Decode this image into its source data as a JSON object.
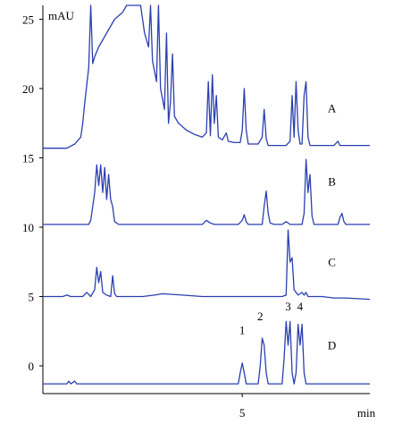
{
  "chart_data": {
    "type": "line",
    "title": "",
    "ylabel": "mAU",
    "xlabel": "min",
    "ylim": [
      -2,
      26
    ],
    "xlim": [
      0,
      8.2
    ],
    "y_ticks": [
      0,
      5,
      10,
      15,
      20,
      25
    ],
    "x_ticks": [
      5
    ],
    "grid": false,
    "series": [
      {
        "name": "A",
        "color": "#2a3fb0",
        "points": [
          [
            0,
            15.7
          ],
          [
            0.6,
            15.7
          ],
          [
            0.8,
            16.0
          ],
          [
            0.95,
            16.5
          ],
          [
            1.0,
            17.5
          ],
          [
            1.05,
            19.0
          ],
          [
            1.15,
            21.5
          ],
          [
            1.2,
            28
          ],
          [
            1.25,
            21.8
          ],
          [
            1.3,
            22.3
          ],
          [
            1.4,
            23.0
          ],
          [
            1.6,
            24.0
          ],
          [
            1.8,
            25.0
          ],
          [
            2.0,
            25.5
          ],
          [
            2.1,
            26.5
          ],
          [
            2.2,
            26.5
          ],
          [
            2.35,
            26.5
          ],
          [
            2.45,
            26.5
          ],
          [
            2.55,
            24.0
          ],
          [
            2.65,
            23.0
          ],
          [
            2.7,
            26.5
          ],
          [
            2.75,
            22.0
          ],
          [
            2.85,
            20.5
          ],
          [
            2.9,
            26.5
          ],
          [
            2.95,
            20.0
          ],
          [
            3.05,
            18.5
          ],
          [
            3.1,
            24.0
          ],
          [
            3.15,
            17.5
          ],
          [
            3.2,
            19.0
          ],
          [
            3.25,
            22.5
          ],
          [
            3.3,
            18.0
          ],
          [
            3.4,
            17.5
          ],
          [
            3.6,
            17.0
          ],
          [
            3.8,
            16.7
          ],
          [
            4.0,
            16.5
          ],
          [
            4.1,
            16.8
          ],
          [
            4.15,
            20.5
          ],
          [
            4.2,
            16.6
          ],
          [
            4.25,
            21.0
          ],
          [
            4.3,
            17.5
          ],
          [
            4.35,
            19.5
          ],
          [
            4.4,
            16.5
          ],
          [
            4.5,
            16.3
          ],
          [
            4.6,
            16.8
          ],
          [
            4.65,
            16.2
          ],
          [
            4.8,
            16.1
          ],
          [
            4.95,
            16.1
          ],
          [
            5.0,
            17.0
          ],
          [
            5.05,
            20.0
          ],
          [
            5.1,
            17.0
          ],
          [
            5.15,
            16.0
          ],
          [
            5.4,
            16.0
          ],
          [
            5.5,
            16.5
          ],
          [
            5.55,
            18.5
          ],
          [
            5.6,
            16.4
          ],
          [
            5.65,
            15.9
          ],
          [
            5.8,
            15.9
          ],
          [
            6.1,
            15.9
          ],
          [
            6.2,
            16.2
          ],
          [
            6.25,
            19.5
          ],
          [
            6.3,
            16.5
          ],
          [
            6.35,
            20.5
          ],
          [
            6.4,
            17.0
          ],
          [
            6.45,
            16.0
          ],
          [
            6.5,
            16.0
          ],
          [
            6.55,
            19.5
          ],
          [
            6.6,
            20.5
          ],
          [
            6.65,
            16.5
          ],
          [
            6.7,
            15.9
          ],
          [
            7.0,
            15.9
          ],
          [
            7.3,
            15.9
          ],
          [
            7.4,
            16.2
          ],
          [
            7.45,
            15.9
          ],
          [
            7.6,
            15.9
          ],
          [
            8.2,
            15.9
          ]
        ]
      },
      {
        "name": "B",
        "color": "#2a3fb0",
        "points": [
          [
            0,
            10.2
          ],
          [
            1.15,
            10.2
          ],
          [
            1.2,
            10.5
          ],
          [
            1.3,
            12.5
          ],
          [
            1.35,
            14.5
          ],
          [
            1.4,
            13.0
          ],
          [
            1.45,
            14.5
          ],
          [
            1.5,
            12.5
          ],
          [
            1.55,
            14.3
          ],
          [
            1.6,
            12.0
          ],
          [
            1.65,
            13.8
          ],
          [
            1.7,
            12.0
          ],
          [
            1.75,
            11.5
          ],
          [
            1.8,
            10.4
          ],
          [
            1.9,
            10.2
          ],
          [
            3.6,
            10.2
          ],
          [
            4.0,
            10.2
          ],
          [
            4.1,
            10.5
          ],
          [
            4.2,
            10.3
          ],
          [
            4.3,
            10.2
          ],
          [
            4.9,
            10.2
          ],
          [
            5.0,
            10.5
          ],
          [
            5.05,
            10.9
          ],
          [
            5.1,
            10.4
          ],
          [
            5.15,
            10.2
          ],
          [
            5.5,
            10.2
          ],
          [
            5.55,
            11.5
          ],
          [
            5.6,
            12.6
          ],
          [
            5.65,
            11.0
          ],
          [
            5.7,
            10.3
          ],
          [
            5.8,
            10.2
          ],
          [
            6.0,
            10.2
          ],
          [
            6.1,
            10.4
          ],
          [
            6.2,
            10.2
          ],
          [
            6.5,
            10.2
          ],
          [
            6.55,
            11.0
          ],
          [
            6.6,
            14.9
          ],
          [
            6.65,
            12.5
          ],
          [
            6.7,
            13.8
          ],
          [
            6.75,
            10.8
          ],
          [
            6.8,
            10.2
          ],
          [
            7.4,
            10.2
          ],
          [
            7.45,
            10.7
          ],
          [
            7.5,
            11.0
          ],
          [
            7.55,
            10.4
          ],
          [
            7.6,
            10.2
          ],
          [
            8.2,
            10.2
          ]
        ]
      },
      {
        "name": "C",
        "color": "#2a3fb0",
        "points": [
          [
            0,
            5.0
          ],
          [
            0.5,
            5.0
          ],
          [
            0.6,
            5.1
          ],
          [
            0.7,
            5.0
          ],
          [
            1.0,
            5.0
          ],
          [
            1.1,
            5.3
          ],
          [
            1.2,
            5.0
          ],
          [
            1.3,
            5.5
          ],
          [
            1.35,
            7.1
          ],
          [
            1.4,
            6.0
          ],
          [
            1.45,
            6.8
          ],
          [
            1.5,
            5.3
          ],
          [
            1.6,
            5.1
          ],
          [
            1.7,
            5.0
          ],
          [
            1.75,
            6.5
          ],
          [
            1.8,
            5.2
          ],
          [
            1.85,
            5.0
          ],
          [
            2.1,
            5.0
          ],
          [
            2.5,
            5.0
          ],
          [
            2.8,
            5.1
          ],
          [
            3.0,
            5.2
          ],
          [
            3.5,
            5.1
          ],
          [
            4.0,
            5.0
          ],
          [
            4.5,
            5.0
          ],
          [
            5.0,
            5.0
          ],
          [
            5.5,
            5.0
          ],
          [
            5.8,
            5.0
          ],
          [
            6.0,
            5.0
          ],
          [
            6.1,
            5.1
          ],
          [
            6.15,
            9.8
          ],
          [
            6.2,
            7.5
          ],
          [
            6.25,
            7.8
          ],
          [
            6.3,
            5.5
          ],
          [
            6.35,
            5.3
          ],
          [
            6.4,
            5.1
          ],
          [
            6.5,
            5.3
          ],
          [
            6.55,
            5.1
          ],
          [
            6.6,
            5.3
          ],
          [
            6.65,
            5.0
          ],
          [
            7.0,
            5.0
          ],
          [
            7.3,
            4.9
          ],
          [
            7.6,
            4.9
          ],
          [
            8.2,
            4.8
          ]
        ]
      },
      {
        "name": "D",
        "color": "#2a3fb0",
        "points": [
          [
            0,
            -1.3
          ],
          [
            0.6,
            -1.3
          ],
          [
            0.65,
            -1.1
          ],
          [
            0.7,
            -1.3
          ],
          [
            0.8,
            -1.1
          ],
          [
            0.85,
            -1.3
          ],
          [
            1.0,
            -1.3
          ],
          [
            1.5,
            -1.3
          ],
          [
            2.0,
            -1.3
          ],
          [
            3.0,
            -1.3
          ],
          [
            4.0,
            -1.3
          ],
          [
            4.9,
            -1.3
          ],
          [
            4.95,
            -0.5
          ],
          [
            5.0,
            0.2
          ],
          [
            5.05,
            -0.5
          ],
          [
            5.1,
            -1.3
          ],
          [
            5.4,
            -1.3
          ],
          [
            5.45,
            0.0
          ],
          [
            5.5,
            2.0
          ],
          [
            5.55,
            1.5
          ],
          [
            5.6,
            -0.5
          ],
          [
            5.65,
            -1.3
          ],
          [
            6.0,
            -1.3
          ],
          [
            6.05,
            0.5
          ],
          [
            6.1,
            3.2
          ],
          [
            6.15,
            1.5
          ],
          [
            6.2,
            3.2
          ],
          [
            6.25,
            -0.5
          ],
          [
            6.3,
            -1.3
          ],
          [
            6.35,
            -0.5
          ],
          [
            6.4,
            3.0
          ],
          [
            6.45,
            1.5
          ],
          [
            6.5,
            3.0
          ],
          [
            6.55,
            -0.5
          ],
          [
            6.6,
            -1.3
          ],
          [
            7.0,
            -1.3
          ],
          [
            7.5,
            -1.3
          ],
          [
            8.2,
            -1.3
          ]
        ]
      }
    ],
    "trace_labels": [
      {
        "text": "A",
        "x": 7.25,
        "y": 18.3
      },
      {
        "text": "B",
        "x": 7.25,
        "y": 13.0
      },
      {
        "text": "C",
        "x": 7.25,
        "y": 7.2
      },
      {
        "text": "D",
        "x": 7.25,
        "y": 1.2
      }
    ],
    "peak_labels": [
      {
        "text": "1",
        "x": 5.0,
        "y": 2.3
      },
      {
        "text": "2",
        "x": 5.45,
        "y": 3.3
      },
      {
        "text": "3",
        "x": 6.15,
        "y": 4.0
      },
      {
        "text": "4",
        "x": 6.45,
        "y": 4.0
      }
    ]
  }
}
